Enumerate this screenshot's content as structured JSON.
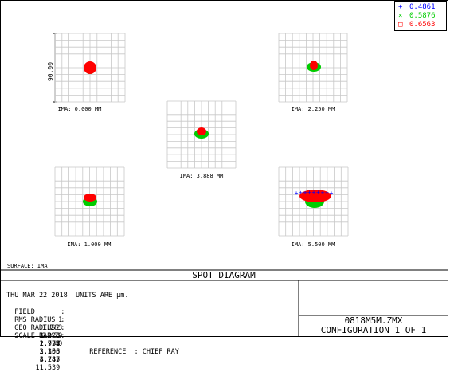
{
  "legend": [
    {
      "symbol": "+",
      "value": "0.4861",
      "color": "#0000ff"
    },
    {
      "symbol": "×",
      "value": "0.5876",
      "color": "#00cc00"
    },
    {
      "symbol": "□",
      "value": "0.6563",
      "color": "#ff0000"
    }
  ],
  "scale_label": "90.00",
  "fields": [
    {
      "label": "IMA: 0.000 MM"
    },
    {
      "label": "IMA: 2.250 MM"
    },
    {
      "label": "IMA: 3.888 MM"
    },
    {
      "label": "IMA: 1.000 MM"
    },
    {
      "label": "IMA: 5.500 MM"
    }
  ],
  "surface_label": "SURFACE: IMA",
  "title": "SPOT DIAGRAM",
  "footer": {
    "date_line": "THU MAR 22 2018  UNITS ARE µm.",
    "field_label": "FIELD",
    "field_values": [
      "1",
      "2",
      "3",
      "4",
      "5"
    ],
    "rms_label": "RMS RADIUS",
    "rms_values": [
      "1.283",
      "1.326",
      "1.735",
      "2.106",
      "4.287"
    ],
    "geo_label": "GEO RADIUS",
    "geo_values": [
      "2.479",
      "2.977",
      "3.358",
      "3.745",
      "11.539"
    ],
    "scale_bar_label": "SCALE BAR",
    "scale_bar_value": "40",
    "reference": "REFERENCE  : CHIEF RAY",
    "filename": "0818M5M.ZMX",
    "configuration": "CONFIGURATION 1 OF 1"
  },
  "colors": {
    "blue": "#0000ff",
    "green": "#00cc00",
    "red": "#ff0000",
    "grid": "#c8c8c8"
  }
}
